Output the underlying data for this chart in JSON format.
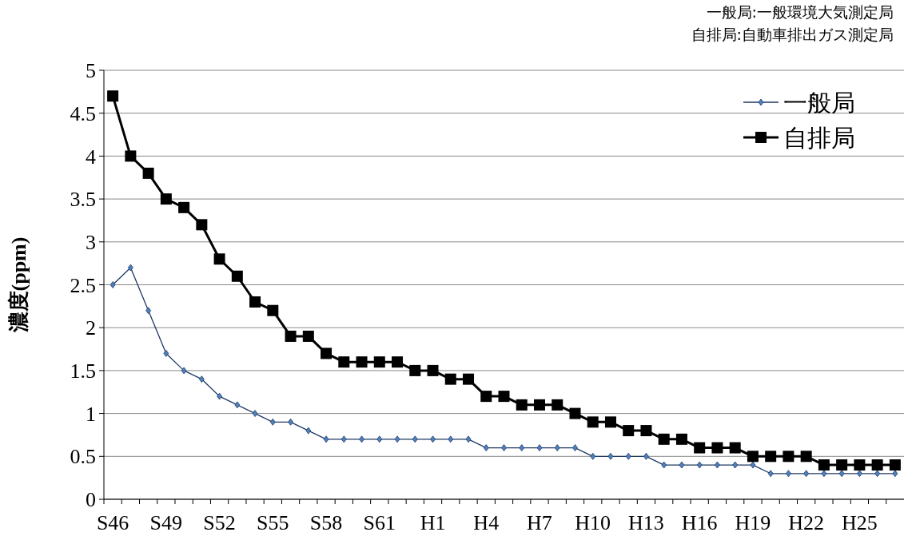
{
  "chart_data": {
    "type": "line",
    "ylabel": "濃度(ppm)",
    "annotations": [
      "一般局:一般環境大気測定局",
      "自排局:自動車排出ガス測定局"
    ],
    "categories": [
      "S46",
      null,
      null,
      "S49",
      null,
      null,
      "S52",
      null,
      null,
      "S55",
      null,
      null,
      "S58",
      null,
      null,
      "S61",
      null,
      null,
      "H1",
      null,
      null,
      "H4",
      null,
      null,
      "H7",
      null,
      null,
      "H10",
      null,
      null,
      "H13",
      null,
      null,
      "H16",
      null,
      null,
      "H19",
      null,
      null,
      "H22",
      null,
      null,
      "H25",
      null,
      null
    ],
    "series": [
      {
        "name": "一般局",
        "color": "#1f3864",
        "marker": "diamond",
        "values": [
          2.5,
          2.7,
          2.2,
          1.7,
          1.5,
          1.4,
          1.2,
          1.1,
          1.0,
          0.9,
          0.9,
          0.8,
          0.7,
          0.7,
          0.7,
          0.7,
          0.7,
          0.7,
          0.7,
          0.7,
          0.7,
          0.6,
          0.6,
          0.6,
          0.6,
          0.6,
          0.6,
          0.5,
          0.5,
          0.5,
          0.5,
          0.4,
          0.4,
          0.4,
          0.4,
          0.4,
          0.4,
          0.3,
          0.3,
          0.3,
          0.3,
          0.3,
          0.3,
          0.3,
          0.3
        ]
      },
      {
        "name": "自排局",
        "color": "#000000",
        "marker": "square",
        "values": [
          4.7,
          4.0,
          3.8,
          3.5,
          3.4,
          3.2,
          2.8,
          2.6,
          2.3,
          2.2,
          1.9,
          1.9,
          1.7,
          1.6,
          1.6,
          1.6,
          1.6,
          1.5,
          1.5,
          1.4,
          1.4,
          1.2,
          1.2,
          1.1,
          1.1,
          1.1,
          1.0,
          0.9,
          0.9,
          0.8,
          0.8,
          0.7,
          0.7,
          0.6,
          0.6,
          0.6,
          0.5,
          0.5,
          0.5,
          0.5,
          0.4,
          0.4,
          0.4,
          0.4,
          0.4
        ]
      }
    ],
    "ylim": [
      0,
      5
    ],
    "yticks": [
      0,
      0.5,
      1,
      1.5,
      2,
      2.5,
      3,
      3.5,
      4,
      4.5,
      5
    ],
    "grid": "y",
    "legend": "top right"
  }
}
